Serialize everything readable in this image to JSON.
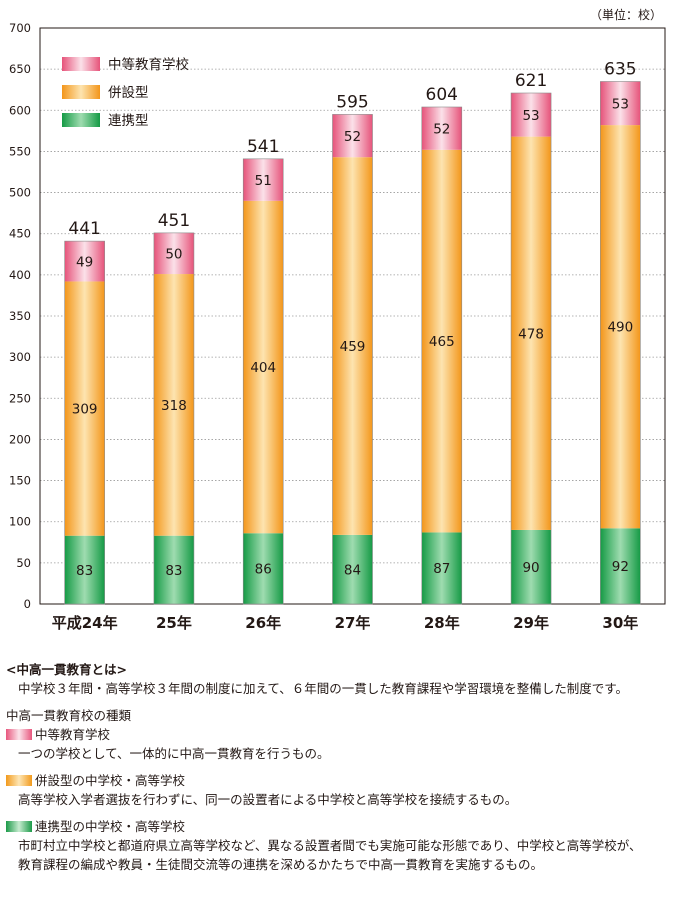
{
  "unit_label": "（単位：校）",
  "chart_data": {
    "type": "bar",
    "stacked": true,
    "categories": [
      "平成24年",
      "25年",
      "26年",
      "27年",
      "28年",
      "29年",
      "30年"
    ],
    "series": [
      {
        "name": "連携型",
        "values": [
          83,
          83,
          86,
          84,
          87,
          90,
          92
        ],
        "color": "#1c9a49"
      },
      {
        "name": "併設型",
        "values": [
          309,
          318,
          404,
          459,
          465,
          478,
          490
        ],
        "color": "#f29a1c"
      },
      {
        "name": "中等教育学校",
        "values": [
          49,
          50,
          51,
          52,
          52,
          53,
          53
        ],
        "color": "#e8577e"
      }
    ],
    "totals": [
      441,
      451,
      541,
      595,
      604,
      621,
      635
    ],
    "ylim": [
      0,
      700
    ],
    "yticks": [
      "0",
      "50",
      "100",
      "150",
      "200",
      "250",
      "300",
      "350",
      "400",
      "450",
      "500",
      "550",
      "600",
      "650",
      "700"
    ],
    "legend": [
      "中等教育学校",
      "併設型",
      "連携型"
    ],
    "legend_position": "top-left",
    "grid": true
  },
  "notes": {
    "heading": "<中高一貫教育とは>",
    "definition": "中学校３年間・高等学校３年間の制度に加えて、６年間の一貫した教育課程や学習環境を整備した制度です。",
    "types_heading": "中高一貫教育校の種類",
    "types": [
      {
        "swatch": "pink",
        "title": "中等教育学校",
        "lines": [
          "一つの学校として、一体的に中高一貫教育を行うもの。"
        ]
      },
      {
        "swatch": "orange",
        "title": "併設型の中学校・高等学校",
        "lines": [
          "高等学校入学者選抜を行わずに、同一の設置者による中学校と高等学校を接続するもの。"
        ]
      },
      {
        "swatch": "green",
        "title": "連携型の中学校・高等学校",
        "lines": [
          "市町村立中学校と都道府県立高等学校など、異なる設置者間でも実施可能な形態であり、中学校と高等学校が、",
          "教育課程の編成や教員・生徒間交流等の連携を深めるかたちで中高一貫教育を実施するもの。"
        ]
      }
    ]
  }
}
